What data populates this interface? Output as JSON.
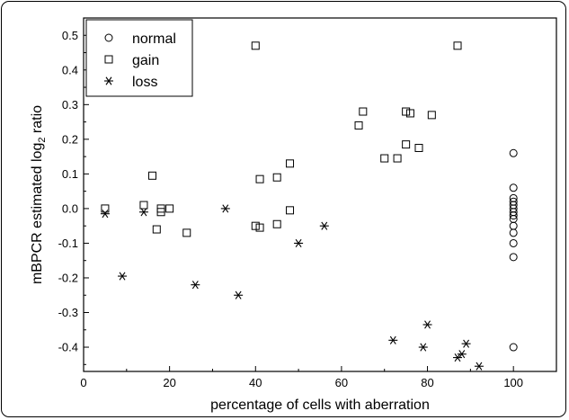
{
  "chart_data": {
    "type": "scatter",
    "xlabel": "percentage of cells with aberration",
    "ylabel": "mBPCR estimated log2 ratio",
    "ylabel_parts": {
      "base": "mBPCR estimated log",
      "sub": "2",
      "tail": " ratio"
    },
    "xlim": [
      0,
      110
    ],
    "ylim": [
      -0.47,
      0.55
    ],
    "x_ticks": [
      0,
      20,
      40,
      60,
      80,
      100
    ],
    "y_ticks": [
      -0.4,
      -0.3,
      -0.2,
      -0.1,
      0.0,
      0.1,
      0.2,
      0.3,
      0.4,
      0.5
    ],
    "x_tick_labels": [
      "0",
      "20",
      "40",
      "60",
      "80",
      "100"
    ],
    "y_tick_labels": [
      "-0.4",
      "-0.3",
      "-0.2",
      "-0.1",
      "0.0",
      "0.1",
      "0.2",
      "0.3",
      "0.4",
      "0.5"
    ],
    "grid": false,
    "legend_position": "top-left",
    "series": [
      {
        "name": "normal",
        "marker": "circle",
        "points": [
          [
            100,
            0.16
          ],
          [
            100,
            0.06
          ],
          [
            100,
            0.03
          ],
          [
            100,
            0.02
          ],
          [
            100,
            0.01
          ],
          [
            100,
            0.0
          ],
          [
            100,
            -0.01
          ],
          [
            100,
            -0.02
          ],
          [
            100,
            -0.03
          ],
          [
            100,
            -0.05
          ],
          [
            100,
            -0.07
          ],
          [
            100,
            -0.1
          ],
          [
            100,
            -0.14
          ],
          [
            100,
            -0.4
          ]
        ]
      },
      {
        "name": "gain",
        "marker": "square",
        "points": [
          [
            5,
            0.0
          ],
          [
            14,
            0.01
          ],
          [
            16,
            0.095
          ],
          [
            17,
            -0.06
          ],
          [
            18,
            -0.01
          ],
          [
            18,
            0.0
          ],
          [
            20,
            0.0
          ],
          [
            24,
            -0.07
          ],
          [
            40,
            0.47
          ],
          [
            40,
            -0.05
          ],
          [
            41,
            -0.055
          ],
          [
            41,
            0.085
          ],
          [
            45,
            -0.045
          ],
          [
            45,
            0.09
          ],
          [
            48,
            0.13
          ],
          [
            48,
            -0.005
          ],
          [
            64,
            0.24
          ],
          [
            65,
            0.28
          ],
          [
            70,
            0.145
          ],
          [
            73,
            0.145
          ],
          [
            75,
            0.28
          ],
          [
            75,
            0.185
          ],
          [
            76,
            0.275
          ],
          [
            78,
            0.175
          ],
          [
            81,
            0.27
          ],
          [
            87,
            0.47
          ]
        ]
      },
      {
        "name": "loss",
        "marker": "asterisk",
        "points": [
          [
            5,
            -0.015
          ],
          [
            9,
            -0.195
          ],
          [
            14,
            -0.01
          ],
          [
            26,
            -0.22
          ],
          [
            33,
            0.0
          ],
          [
            36,
            -0.25
          ],
          [
            50,
            -0.1
          ],
          [
            56,
            -0.05
          ],
          [
            72,
            -0.38
          ],
          [
            79,
            -0.4
          ],
          [
            80,
            -0.335
          ],
          [
            87,
            -0.43
          ],
          [
            88,
            -0.42
          ],
          [
            89,
            -0.39
          ],
          [
            92,
            -0.455
          ]
        ]
      }
    ]
  }
}
